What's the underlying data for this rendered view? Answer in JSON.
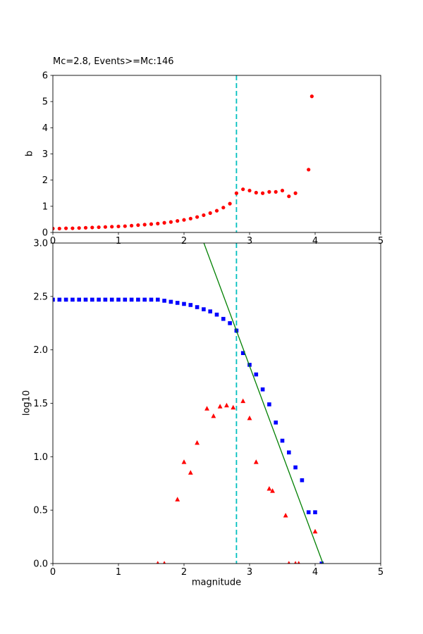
{
  "figure": {
    "background": "#ffffff",
    "frame_color": "#000000"
  },
  "chart_data": [
    {
      "type": "scatter",
      "title": "Mc=2.8, Events>=Mc:146",
      "xlabel": "",
      "ylabel": "b",
      "xlim": [
        0,
        5
      ],
      "ylim": [
        0,
        6
      ],
      "xticks": [
        0,
        1,
        2,
        3,
        4,
        5
      ],
      "xtick_labels": [
        "0",
        "1",
        "2",
        "3",
        "4",
        "5"
      ],
      "yticks": [
        0,
        1,
        2,
        3,
        4,
        5,
        6
      ],
      "ytick_labels": [
        "0",
        "1",
        "2",
        "3",
        "4",
        "5",
        "6"
      ],
      "grid": false,
      "legend": "none",
      "vline": {
        "x": 2.8,
        "color": "#00bfbf",
        "style": "dashed"
      },
      "series": [
        {
          "name": "b-value-dots",
          "marker": "circle",
          "color": "#ff0000",
          "x": [
            0.0,
            0.1,
            0.2,
            0.3,
            0.4,
            0.5,
            0.6,
            0.7,
            0.8,
            0.9,
            1.0,
            1.1,
            1.2,
            1.3,
            1.4,
            1.5,
            1.6,
            1.7,
            1.8,
            1.9,
            2.0,
            2.1,
            2.2,
            2.3,
            2.4,
            2.5,
            2.6,
            2.7,
            2.8,
            2.9,
            3.0,
            3.1,
            3.2,
            3.3,
            3.4,
            3.5,
            3.6,
            3.7,
            3.9,
            3.95
          ],
          "y": [
            0.15,
            0.15,
            0.16,
            0.16,
            0.17,
            0.18,
            0.19,
            0.2,
            0.21,
            0.22,
            0.23,
            0.24,
            0.26,
            0.28,
            0.3,
            0.32,
            0.34,
            0.37,
            0.4,
            0.44,
            0.48,
            0.53,
            0.59,
            0.66,
            0.74,
            0.83,
            0.95,
            1.1,
            1.5,
            1.65,
            1.6,
            1.52,
            1.5,
            1.55,
            1.55,
            1.6,
            1.38,
            1.5,
            2.4,
            5.2
          ]
        }
      ]
    },
    {
      "type": "scatter",
      "title": "",
      "xlabel": "magnitude",
      "ylabel": "log10",
      "xlim": [
        0,
        5
      ],
      "ylim": [
        0,
        3
      ],
      "xticks": [
        0,
        1,
        2,
        3,
        4,
        5
      ],
      "xtick_labels": [
        "0",
        "1",
        "2",
        "3",
        "4",
        "5"
      ],
      "yticks": [
        0,
        0.5,
        1,
        1.5,
        2,
        2.5,
        3
      ],
      "ytick_labels": [
        "0.0",
        "0.5",
        "1.0",
        "1.5",
        "2.0",
        "2.5",
        "3.0"
      ],
      "grid": false,
      "legend": "none",
      "vline": {
        "x": 2.8,
        "color": "#00bfbf",
        "style": "dashed"
      },
      "series": [
        {
          "name": "cumulative-count-squares",
          "marker": "square",
          "color": "#0000ff",
          "x": [
            0.0,
            0.1,
            0.2,
            0.3,
            0.4,
            0.5,
            0.6,
            0.7,
            0.8,
            0.9,
            1.0,
            1.1,
            1.2,
            1.3,
            1.4,
            1.5,
            1.6,
            1.7,
            1.8,
            1.9,
            2.0,
            2.1,
            2.2,
            2.3,
            2.4,
            2.5,
            2.6,
            2.7,
            2.8,
            2.9,
            3.0,
            3.1,
            3.2,
            3.3,
            3.4,
            3.5,
            3.6,
            3.7,
            3.8,
            3.9,
            4.0,
            4.1
          ],
          "y": [
            2.47,
            2.47,
            2.47,
            2.47,
            2.47,
            2.47,
            2.47,
            2.47,
            2.47,
            2.47,
            2.47,
            2.47,
            2.47,
            2.47,
            2.47,
            2.47,
            2.47,
            2.46,
            2.45,
            2.44,
            2.43,
            2.42,
            2.4,
            2.38,
            2.36,
            2.33,
            2.29,
            2.25,
            2.18,
            1.97,
            1.86,
            1.77,
            1.63,
            1.49,
            1.32,
            1.15,
            1.04,
            0.9,
            0.78,
            0.48,
            0.48,
            0.0
          ]
        },
        {
          "name": "binned-count-triangles",
          "marker": "triangle",
          "color": "#ff0000",
          "x": [
            1.6,
            1.7,
            1.9,
            2.0,
            2.1,
            2.2,
            2.35,
            2.45,
            2.55,
            2.65,
            2.75,
            2.9,
            3.0,
            3.1,
            3.3,
            3.35,
            3.55,
            3.6,
            3.7,
            3.75,
            4.0
          ],
          "y": [
            0.0,
            0.0,
            0.6,
            0.95,
            0.85,
            1.13,
            1.45,
            1.38,
            1.47,
            1.48,
            1.46,
            1.52,
            1.36,
            0.95,
            0.7,
            0.68,
            0.45,
            0.0,
            0.0,
            0.0,
            0.3
          ]
        },
        {
          "name": "gr-fit-line",
          "marker": "line",
          "color": "#008000",
          "x": [
            2.2,
            4.15
          ],
          "y": [
            3.17,
            -0.05
          ]
        }
      ]
    }
  ]
}
